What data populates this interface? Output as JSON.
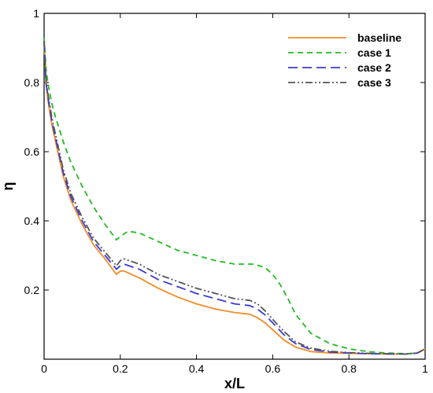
{
  "chart_data": {
    "type": "line",
    "xlabel": "x/L",
    "ylabel": "η",
    "xlim": [
      0,
      1
    ],
    "ylim": [
      0,
      1
    ],
    "x_ticks": [
      0,
      0.2,
      0.4,
      0.6,
      0.8,
      1
    ],
    "y_ticks": [
      0.2,
      0.4,
      0.6,
      0.8,
      1
    ],
    "x_tick_labels": [
      "0",
      "0.2",
      "0.4",
      "0.6",
      "0.8",
      "1"
    ],
    "y_tick_labels": [
      "0.2",
      "0.4",
      "0.6",
      "0.8",
      "1"
    ],
    "grid": false,
    "legend_position": "top-right",
    "series": [
      {
        "name": "baseline",
        "color": "#f28c28",
        "dash": "solid",
        "x": [
          0,
          0.005,
          0.01,
          0.02,
          0.03,
          0.05,
          0.07,
          0.1,
          0.13,
          0.16,
          0.19,
          0.2,
          0.21,
          0.25,
          0.3,
          0.35,
          0.4,
          0.45,
          0.5,
          0.54,
          0.56,
          0.58,
          0.6,
          0.63,
          0.66,
          0.7,
          0.75,
          0.8,
          0.85,
          0.9,
          0.95,
          0.98,
          1
        ],
        "y": [
          0.92,
          0.8,
          0.75,
          0.68,
          0.63,
          0.53,
          0.46,
          0.39,
          0.33,
          0.29,
          0.245,
          0.255,
          0.255,
          0.235,
          0.205,
          0.18,
          0.16,
          0.145,
          0.135,
          0.13,
          0.12,
          0.105,
          0.085,
          0.055,
          0.035,
          0.022,
          0.018,
          0.017,
          0.016,
          0.015,
          0.015,
          0.018,
          0.03
        ]
      },
      {
        "name": "case 1",
        "color": "#22bb22",
        "dash": "7,5",
        "x": [
          0,
          0.005,
          0.01,
          0.02,
          0.03,
          0.05,
          0.07,
          0.1,
          0.13,
          0.16,
          0.19,
          0.2,
          0.22,
          0.25,
          0.3,
          0.35,
          0.4,
          0.45,
          0.5,
          0.55,
          0.58,
          0.6,
          0.62,
          0.64,
          0.66,
          0.7,
          0.75,
          0.8,
          0.85,
          0.9,
          0.95,
          0.98,
          1
        ],
        "y": [
          0.93,
          0.84,
          0.8,
          0.74,
          0.7,
          0.63,
          0.57,
          0.5,
          0.44,
          0.39,
          0.345,
          0.355,
          0.37,
          0.365,
          0.34,
          0.315,
          0.3,
          0.285,
          0.275,
          0.275,
          0.265,
          0.245,
          0.215,
          0.175,
          0.13,
          0.075,
          0.045,
          0.03,
          0.022,
          0.018,
          0.016,
          0.018,
          0.03
        ]
      },
      {
        "name": "case 2",
        "color": "#3a3ad6",
        "dash": "12,6",
        "x": [
          0,
          0.005,
          0.01,
          0.02,
          0.03,
          0.05,
          0.07,
          0.1,
          0.13,
          0.16,
          0.19,
          0.2,
          0.21,
          0.25,
          0.3,
          0.35,
          0.4,
          0.45,
          0.5,
          0.54,
          0.56,
          0.58,
          0.6,
          0.63,
          0.66,
          0.7,
          0.75,
          0.8,
          0.85,
          0.9,
          0.95,
          0.98,
          1
        ],
        "y": [
          0.92,
          0.8,
          0.76,
          0.69,
          0.64,
          0.54,
          0.47,
          0.4,
          0.34,
          0.3,
          0.26,
          0.27,
          0.275,
          0.26,
          0.23,
          0.21,
          0.19,
          0.175,
          0.16,
          0.155,
          0.145,
          0.128,
          0.105,
          0.07,
          0.045,
          0.028,
          0.021,
          0.018,
          0.016,
          0.015,
          0.015,
          0.018,
          0.03
        ]
      },
      {
        "name": "case 3",
        "color": "#555555",
        "dash": "9,3,2,3,2,3",
        "x": [
          0,
          0.005,
          0.01,
          0.02,
          0.03,
          0.05,
          0.07,
          0.1,
          0.13,
          0.16,
          0.19,
          0.2,
          0.21,
          0.25,
          0.3,
          0.35,
          0.4,
          0.45,
          0.5,
          0.54,
          0.56,
          0.58,
          0.6,
          0.63,
          0.66,
          0.7,
          0.75,
          0.8,
          0.85,
          0.9,
          0.95,
          0.98,
          1
        ],
        "y": [
          0.92,
          0.81,
          0.77,
          0.7,
          0.65,
          0.55,
          0.48,
          0.41,
          0.35,
          0.31,
          0.27,
          0.285,
          0.29,
          0.275,
          0.245,
          0.225,
          0.205,
          0.19,
          0.175,
          0.17,
          0.16,
          0.14,
          0.115,
          0.08,
          0.05,
          0.032,
          0.023,
          0.019,
          0.017,
          0.016,
          0.015,
          0.018,
          0.03
        ]
      }
    ]
  }
}
